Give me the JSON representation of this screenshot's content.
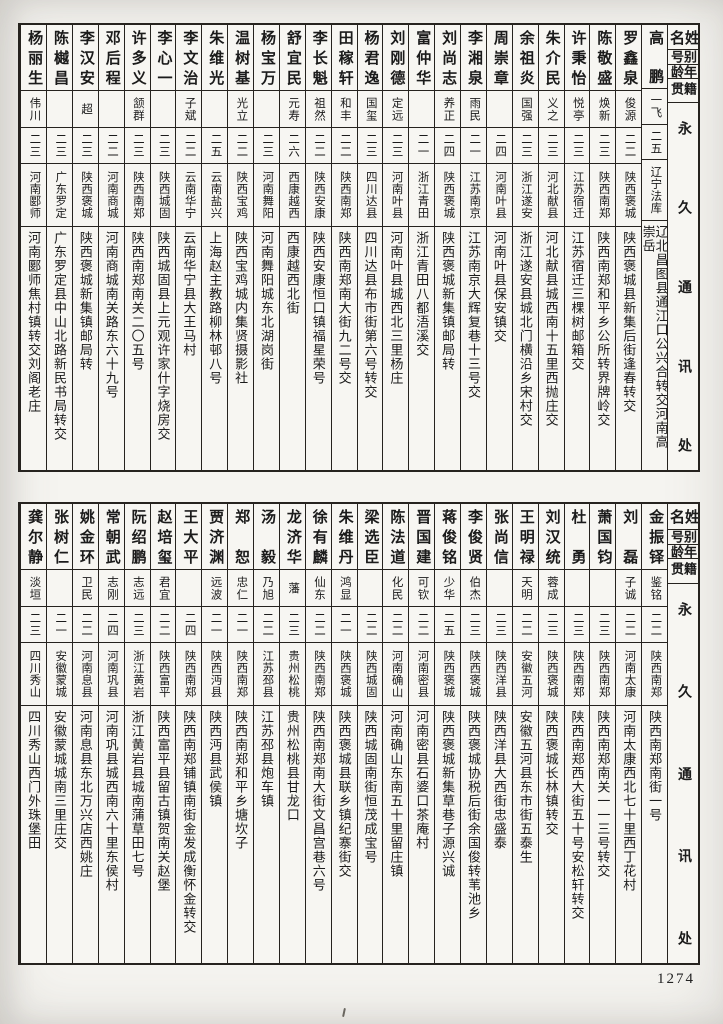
{
  "page": {
    "page_number": "1274",
    "row_headers": {
      "name": "姓名",
      "alias": "别号",
      "age": "年龄",
      "native": "籍贯",
      "address": "永久通讯处"
    }
  },
  "tables": [
    {
      "entries": [
        {
          "name": "高鹏",
          "alias": "一飞",
          "age": "二五",
          "native": "辽宁法库",
          "address": "辽北昌图县通江口公兴合转交河南高崇岳"
        },
        {
          "name": "罗鑫泉",
          "alias": "俊源",
          "age": "二二",
          "native": "陕西褒城",
          "address": "陕西褒城县新集后街逢春转交"
        },
        {
          "name": "陈敬盛",
          "alias": "焕新",
          "age": "二三",
          "native": "陕西南郑",
          "address": "陕西南郑和平乡公所转界牌岭交"
        },
        {
          "name": "许秉怡",
          "alias": "悦亭",
          "age": "二三",
          "native": "江苏宿迁",
          "address": "江苏宿迁三棵树邮箱交"
        },
        {
          "name": "朱介民",
          "alias": "义之",
          "age": "二三",
          "native": "河北献县",
          "address": "河北献县城西南十五里西抛庄交"
        },
        {
          "name": "余祖炎",
          "alias": "国强",
          "age": "二三",
          "native": "浙江遂安",
          "address": "浙江遂安县城北门横沿乡宋村交"
        },
        {
          "name": "周崇章",
          "alias": "",
          "age": "二四",
          "native": "河南叶县",
          "address": "河南叶县保安镇交"
        },
        {
          "name": "李湘泉",
          "alias": "雨民",
          "age": "二一",
          "native": "江苏南京",
          "address": "江苏南京大辉复巷十三号交"
        },
        {
          "name": "刘尚志",
          "alias": "养正",
          "age": "二四",
          "native": "陕西褒城",
          "address": "陕西褒城新集镇邮局转"
        },
        {
          "name": "富仲华",
          "alias": "",
          "age": "二一",
          "native": "浙江青田",
          "address": "浙江青田八都浯溪交"
        },
        {
          "name": "刘刚德",
          "alias": "定远",
          "age": "二三",
          "native": "河南叶县",
          "address": "河南叶县城西北三里杨庄"
        },
        {
          "name": "杨君逸",
          "alias": "国玺",
          "age": "二三",
          "native": "四川达县",
          "address": "四川达县布市街第六号转交"
        },
        {
          "name": "田稼轩",
          "alias": "和丰",
          "age": "二二",
          "native": "陕西南郑",
          "address": "陕西南郑南大街九二号交"
        },
        {
          "name": "李长魁",
          "alias": "祖然",
          "age": "二二",
          "native": "陕西安康",
          "address": "陕西安康恒口镇福星荣号"
        },
        {
          "name": "舒宜民",
          "alias": "元寿",
          "age": "二六",
          "native": "西康越西",
          "address": "西康越西北街"
        },
        {
          "name": "杨宝万",
          "alias": "",
          "age": "二三",
          "native": "河南舞阳",
          "address": "河南舞阳城东北湖岗街"
        },
        {
          "name": "温树基",
          "alias": "光立",
          "age": "二二",
          "native": "陕西宝鸡",
          "address": "陕西宝鸡城内集贤摄影社"
        },
        {
          "name": "朱维光",
          "alias": "",
          "age": "二五",
          "native": "云南盐兴",
          "address": "上海赵主教路柳林邨八号"
        },
        {
          "name": "李文治",
          "alias": "子斌",
          "age": "二二",
          "native": "云南华宁",
          "address": "云南华宁县大王马村"
        },
        {
          "name": "李心一",
          "alias": "",
          "age": "二三",
          "native": "陕西城固",
          "address": "陕西城固县上元观许家什字烧房交"
        },
        {
          "name": "许多义",
          "alias": "颔群",
          "age": "二三",
          "native": "陕西南郑",
          "address": "陕西南郑南关二〇五号"
        },
        {
          "name": "邓后程",
          "alias": "",
          "age": "二二",
          "native": "河南商城",
          "address": "河南商城南关路东六十九号"
        },
        {
          "name": "李汉安",
          "alias": "超",
          "age": "二三",
          "native": "陕西褒城",
          "address": "陕西褒城新集镇邮局转"
        },
        {
          "name": "陈樾昌",
          "alias": "",
          "age": "二三",
          "native": "广东罗定",
          "address": "广东罗定县中山北路新民书局转交"
        },
        {
          "name": "杨丽生",
          "alias": "伟川",
          "age": "二三",
          "native": "河南郾师",
          "address": "河南郾师焦村镇转交刘阁老庄"
        }
      ]
    },
    {
      "entries": [
        {
          "name": "金振铎",
          "alias": "鉴铭",
          "age": "二二",
          "native": "陕西南郑",
          "address": "陕西南郑南街一号"
        },
        {
          "name": "刘磊",
          "alias": "子诚",
          "age": "二二",
          "native": "河南太康",
          "address": "河南太康西北七十里西丁花村"
        },
        {
          "name": "萧国钧",
          "alias": "",
          "age": "二三",
          "native": "陕西南郑",
          "address": "陕西南郑南关一一三号转交"
        },
        {
          "name": "杜勇",
          "alias": "",
          "age": "二三",
          "native": "陕西南郑",
          "address": "陕西南郑西大街五十号安松轩转交"
        },
        {
          "name": "刘汉统",
          "alias": "蓉成",
          "age": "二三",
          "native": "陕西褒城",
          "address": "陕西褒城长林镇转交"
        },
        {
          "name": "王明禄",
          "alias": "天明",
          "age": "二二",
          "native": "安徽五河",
          "address": "安徽五河县东市街五泰生"
        },
        {
          "name": "张尚信",
          "alias": "",
          "age": "二三",
          "native": "陕西洋县",
          "address": "陕西洋县大西街忠盛泰"
        },
        {
          "name": "李俊贤",
          "alias": "伯杰",
          "age": "二三",
          "native": "陕西褒城",
          "address": "陕西褒城协税后街余国俊转苇池乡"
        },
        {
          "name": "蒋俊铭",
          "alias": "少华",
          "age": "二五",
          "native": "陕西褒城",
          "address": "陕西褒城新集草巷子源兴诚"
        },
        {
          "name": "晋国建",
          "alias": "可钦",
          "age": "二二",
          "native": "河南密县",
          "address": "河南密县石婆口茶庵村"
        },
        {
          "name": "陈法道",
          "alias": "化民",
          "age": "二二",
          "native": "河南确山",
          "address": "河南确山东南五十里留庄镇"
        },
        {
          "name": "梁选臣",
          "alias": "",
          "age": "二二",
          "native": "陕西城固",
          "address": "陕西城固南街恒茂成宝号"
        },
        {
          "name": "朱维丹",
          "alias": "鸿显",
          "age": "二一",
          "native": "陕西褒城",
          "address": "陕西褒城县联乡镇纪寨街交"
        },
        {
          "name": "徐有麟",
          "alias": "仙东",
          "age": "二二",
          "native": "陕西南郑",
          "address": "陕西南郑南大街文昌宫巷六号"
        },
        {
          "name": "龙济华",
          "alias": "藩",
          "age": "二三",
          "native": "贵州松桃",
          "address": "贵州松桃县甘龙口"
        },
        {
          "name": "汤毅",
          "alias": "乃旭",
          "age": "二二",
          "native": "江苏邳县",
          "address": "江苏邳县炮车镇"
        },
        {
          "name": "郑恕",
          "alias": "忠仁",
          "age": "二一",
          "native": "陕西南郑",
          "address": "陕西南郑和平乡塘坎子"
        },
        {
          "name": "贾济渊",
          "alias": "远波",
          "age": "二一",
          "native": "陕西沔县",
          "address": "陕西沔县武侯镇"
        },
        {
          "name": "王大平",
          "alias": "",
          "age": "二四",
          "native": "陕西南郑",
          "address": "陕西南郑铺镇南街金发成衡怀金转交"
        },
        {
          "name": "赵培玺",
          "alias": "君宜",
          "age": "二二",
          "native": "陕西富平",
          "address": "陕西富平县留古镇贺南关赵堡"
        },
        {
          "name": "阮绍鹏",
          "alias": "志远",
          "age": "二三",
          "native": "浙江黄岩",
          "address": "浙江黄岩县城南蒲草田七号"
        },
        {
          "name": "常朝武",
          "alias": "志刚",
          "age": "二四",
          "native": "河南巩县",
          "address": "河南巩县城西南六十里东侯村"
        },
        {
          "name": "姚金环",
          "alias": "卫民",
          "age": "二二",
          "native": "河南息县",
          "address": "河南息县东北万兴店西姚庄"
        },
        {
          "name": "张树仁",
          "alias": "",
          "age": "二一",
          "native": "安徽蒙城",
          "address": "安徽蒙城城南三里庄交"
        },
        {
          "name": "龚尔静",
          "alias": "淡垣",
          "age": "二三",
          "native": "四川秀山",
          "address": "四川秀山西门外珠堡田"
        }
      ]
    }
  ]
}
